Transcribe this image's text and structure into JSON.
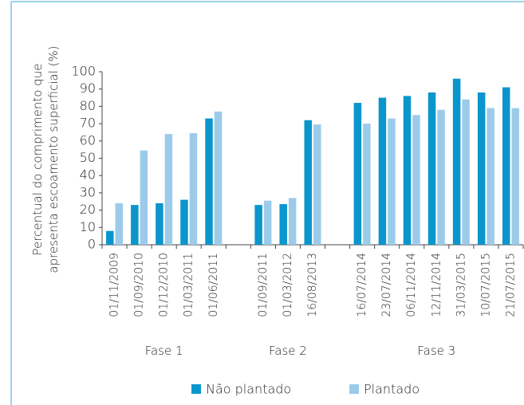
{
  "chart_data": {
    "type": "bar",
    "y_label": [
      "Percentual do comprimento que",
      "apresenta escoamento superficial (%)"
    ],
    "categories": [
      "01/11/2009",
      "01/09/2010",
      "01/12/2010",
      "01/03/2011",
      "01/06/2011",
      null,
      "01/09/2011",
      "01/03/2012",
      "16/08/2013",
      null,
      "16/07/2014",
      "23/07/2014",
      "06/11/2014",
      "12/11/2014",
      "31/03/2015",
      "10/07/2015",
      "21/07/2015"
    ],
    "group_labels": [
      "Fase 1",
      "Fase 2",
      "Fase 3"
    ],
    "series": [
      {
        "name": "Não plantado",
        "color": "#0a96cc",
        "values": [
          8,
          23,
          24,
          26,
          73,
          null,
          23,
          23.5,
          72,
          null,
          82,
          85,
          86,
          88,
          96,
          88,
          91
        ]
      },
      {
        "name": "Plantado",
        "color": "#9ccbea",
        "values": [
          24,
          54.5,
          64,
          64.5,
          77,
          null,
          25.5,
          27,
          69.5,
          null,
          70,
          73,
          75,
          78,
          84,
          79,
          79
        ]
      }
    ],
    "ylim": [
      0,
      100
    ],
    "yticks": [
      0,
      10,
      20,
      30,
      40,
      50,
      60,
      70,
      80,
      90,
      100
    ],
    "legend": "bottom"
  }
}
